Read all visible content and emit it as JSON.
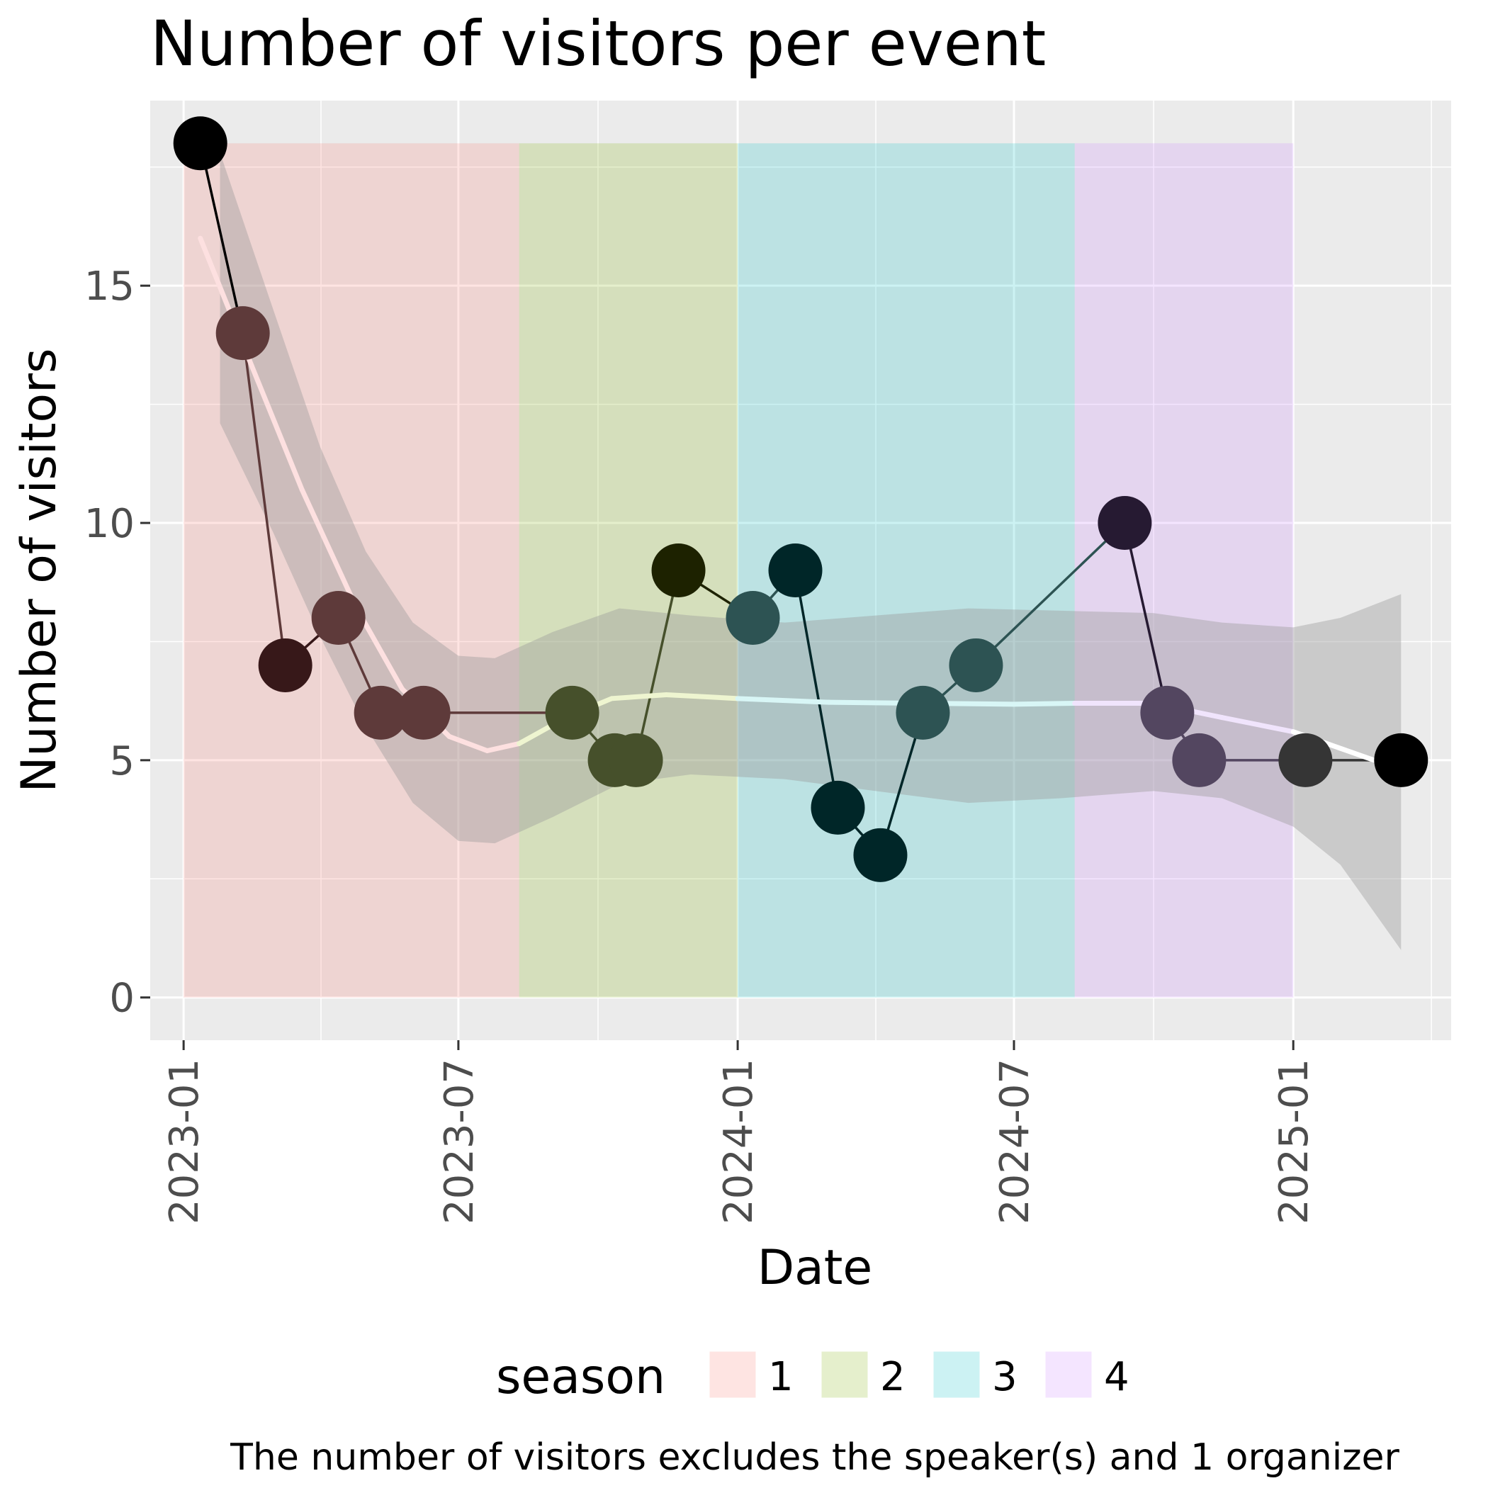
{
  "chart_data": {
    "type": "line",
    "title": "Number of visitors per event",
    "xlabel": "Date",
    "ylabel": "Number of visitors",
    "caption": "The number of visitors excludes the speaker(s) and 1 organizer",
    "x_axis": {
      "type": "date",
      "range": [
        "2022-12-10",
        "2025-04-15"
      ],
      "ticks": [
        "2023-01",
        "2023-07",
        "2024-01",
        "2024-07",
        "2025-01"
      ]
    },
    "y_axis": {
      "range": [
        -0.9,
        18.9
      ],
      "ticks": [
        "0",
        "5",
        "10",
        "15"
      ]
    },
    "grid": true,
    "legend": {
      "title": "season",
      "position": "bottom",
      "items": [
        {
          "label": "1",
          "color": "#f8766d"
        },
        {
          "label": "2",
          "color": "#7cae00"
        },
        {
          "label": "3",
          "color": "#00bfc4"
        },
        {
          "label": "4",
          "color": "#c77cff"
        }
      ]
    },
    "seasons": [
      {
        "season": "1",
        "start": "2023-01-01",
        "end": "2023-08-10",
        "ymax": 18,
        "color": "#f8766d"
      },
      {
        "season": "2",
        "start": "2023-08-10",
        "end": "2024-01-01",
        "ymax": 18,
        "color": "#7cae00"
      },
      {
        "season": "3",
        "start": "2024-01-01",
        "end": "2024-08-10",
        "ymax": 18,
        "color": "#00bfc4"
      },
      {
        "season": "4",
        "start": "2024-08-10",
        "end": "2025-01-01",
        "ymax": 18,
        "color": "#c77cff"
      }
    ],
    "series": [
      {
        "values": [
          {
            "date": "2023-01-12",
            "y": 18,
            "fill": "#000000",
            "season": "1"
          },
          {
            "date": "2023-02-09",
            "y": 14,
            "fill": "#5e3a3a",
            "season": "1"
          },
          {
            "date": "2023-03-09",
            "y": 7,
            "fill": "#371819",
            "season": "1"
          },
          {
            "date": "2023-04-13",
            "y": 8,
            "fill": "#5e3a3a",
            "season": "1"
          },
          {
            "date": "2023-05-11",
            "y": 6,
            "fill": "#5e3a3a",
            "season": "1"
          },
          {
            "date": "2023-06-08",
            "y": 6,
            "fill": "#5e3a3a",
            "season": "1"
          },
          {
            "date": "2023-09-14",
            "y": 6,
            "fill": "#46502b",
            "season": "2"
          },
          {
            "date": "2023-10-12",
            "y": 5,
            "fill": "#46502b",
            "season": "2"
          },
          {
            "date": "2023-10-26",
            "y": 5,
            "fill": "#46502b",
            "season": "2"
          },
          {
            "date": "2023-11-23",
            "y": 9,
            "fill": "#1d2200",
            "season": "2"
          },
          {
            "date": "2024-01-11",
            "y": 8,
            "fill": "#2d5353",
            "season": "3"
          },
          {
            "date": "2024-02-08",
            "y": 9,
            "fill": "#002628",
            "season": "3"
          },
          {
            "date": "2024-03-07",
            "y": 4,
            "fill": "#002628",
            "season": "3"
          },
          {
            "date": "2024-04-04",
            "y": 3,
            "fill": "#002628",
            "season": "3"
          },
          {
            "date": "2024-05-02",
            "y": 6,
            "fill": "#2d5353",
            "season": "3"
          },
          {
            "date": "2024-06-06",
            "y": 7,
            "fill": "#2d5353",
            "season": "3"
          },
          {
            "date": "2024-09-12",
            "y": 10,
            "fill": "#261a32",
            "season": "4"
          },
          {
            "date": "2024-10-10",
            "y": 6,
            "fill": "#534660",
            "season": "4"
          },
          {
            "date": "2024-10-31",
            "y": 5,
            "fill": "#534660",
            "season": "4"
          },
          {
            "date": "2025-01-09",
            "y": 5,
            "fill": "#353535",
            "season": ""
          },
          {
            "date": "2025-03-13",
            "y": 5,
            "fill": "#000000",
            "season": ""
          }
        ]
      }
    ],
    "smooth": {
      "line": [
        {
          "date": "2023-01-12",
          "y": 16.0,
          "color": "#fde0e0"
        },
        {
          "date": "2023-02-15",
          "y": 13.3,
          "color": "#fde0e0"
        },
        {
          "date": "2023-03-20",
          "y": 10.7,
          "color": "#fde0e0"
        },
        {
          "date": "2023-04-25",
          "y": 8.2,
          "color": "#fde0e0"
        },
        {
          "date": "2023-05-25",
          "y": 6.5,
          "color": "#fde0e0"
        },
        {
          "date": "2023-06-25",
          "y": 5.5,
          "color": "#fde0e0"
        },
        {
          "date": "2023-07-20",
          "y": 5.2,
          "color": "#fde0e0"
        },
        {
          "date": "2023-08-10",
          "y": 5.35,
          "color": "#eef5d0"
        },
        {
          "date": "2023-09-10",
          "y": 5.9,
          "color": "#eef5d0"
        },
        {
          "date": "2023-10-10",
          "y": 6.3,
          "color": "#eef5d0"
        },
        {
          "date": "2023-11-15",
          "y": 6.38,
          "color": "#eef5d0"
        },
        {
          "date": "2024-01-01",
          "y": 6.3,
          "color": "#d8f6f6"
        },
        {
          "date": "2024-03-01",
          "y": 6.22,
          "color": "#d8f6f6"
        },
        {
          "date": "2024-05-01",
          "y": 6.2,
          "color": "#d8f6f6"
        },
        {
          "date": "2024-07-01",
          "y": 6.18,
          "color": "#d8f6f6"
        },
        {
          "date": "2024-08-10",
          "y": 6.2,
          "color": "#f0e4fc"
        },
        {
          "date": "2024-10-01",
          "y": 6.2,
          "color": "#f0e4fc"
        },
        {
          "date": "2024-11-15",
          "y": 5.9,
          "color": "#f0e4fc"
        },
        {
          "date": "2025-01-01",
          "y": 5.6,
          "color": "#ffffff"
        },
        {
          "date": "2025-03-13",
          "y": 4.8,
          "color": "#ffffff"
        }
      ],
      "band_upper": [
        {
          "date": "2023-01-25",
          "y": 17.8
        },
        {
          "date": "2023-03-01",
          "y": 14.5
        },
        {
          "date": "2023-04-01",
          "y": 11.6
        },
        {
          "date": "2023-05-01",
          "y": 9.4
        },
        {
          "date": "2023-06-01",
          "y": 7.9
        },
        {
          "date": "2023-07-01",
          "y": 7.2
        },
        {
          "date": "2023-07-25",
          "y": 7.15
        },
        {
          "date": "2023-09-01",
          "y": 7.7
        },
        {
          "date": "2023-10-15",
          "y": 8.2
        },
        {
          "date": "2023-12-01",
          "y": 8.05
        },
        {
          "date": "2024-02-01",
          "y": 7.9
        },
        {
          "date": "2024-04-01",
          "y": 8.05
        },
        {
          "date": "2024-06-01",
          "y": 8.2
        },
        {
          "date": "2024-08-01",
          "y": 8.15
        },
        {
          "date": "2024-10-01",
          "y": 8.1
        },
        {
          "date": "2024-11-15",
          "y": 7.9
        },
        {
          "date": "2025-01-01",
          "y": 7.8
        },
        {
          "date": "2025-02-01",
          "y": 8.0
        },
        {
          "date": "2025-03-13",
          "y": 8.5
        }
      ],
      "band_lower": [
        {
          "date": "2023-01-25",
          "y": 12.1
        },
        {
          "date": "2023-03-01",
          "y": 9.8
        },
        {
          "date": "2023-04-01",
          "y": 7.6
        },
        {
          "date": "2023-05-01",
          "y": 5.7
        },
        {
          "date": "2023-06-01",
          "y": 4.1
        },
        {
          "date": "2023-07-01",
          "y": 3.3
        },
        {
          "date": "2023-07-25",
          "y": 3.25
        },
        {
          "date": "2023-09-01",
          "y": 3.8
        },
        {
          "date": "2023-10-15",
          "y": 4.5
        },
        {
          "date": "2023-12-01",
          "y": 4.7
        },
        {
          "date": "2024-02-01",
          "y": 4.6
        },
        {
          "date": "2024-04-01",
          "y": 4.35
        },
        {
          "date": "2024-06-01",
          "y": 4.1
        },
        {
          "date": "2024-08-01",
          "y": 4.2
        },
        {
          "date": "2024-10-01",
          "y": 4.35
        },
        {
          "date": "2024-11-15",
          "y": 4.2
        },
        {
          "date": "2025-01-01",
          "y": 3.6
        },
        {
          "date": "2025-02-01",
          "y": 2.8
        },
        {
          "date": "2025-03-13",
          "y": 1.0
        }
      ]
    }
  }
}
